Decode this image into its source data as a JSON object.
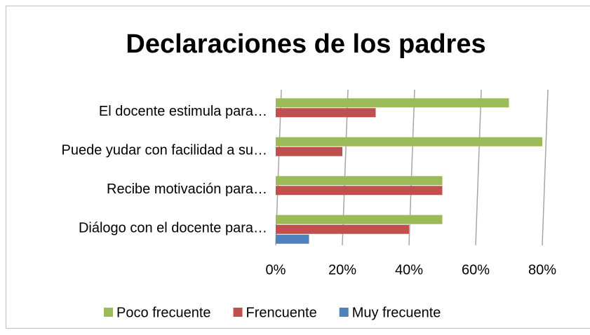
{
  "chart_data": {
    "type": "bar",
    "orientation": "horizontal",
    "title": "Declaraciones de los padres",
    "categories": [
      "El docente estimula para…",
      "Puede yudar con facilidad a su…",
      "Recibe motivación para…",
      "Diálogo con el docente para…"
    ],
    "series": [
      {
        "name": "Poco frecuente",
        "color": "#9bbb59",
        "values": [
          70,
          80,
          50,
          50
        ]
      },
      {
        "name": "Frencuente",
        "color": "#c0504d",
        "values": [
          30,
          20,
          50,
          40
        ]
      },
      {
        "name": "Muy frecuente",
        "color": "#4f81bd",
        "values": [
          0,
          0,
          0,
          10
        ]
      }
    ],
    "xlim": [
      0,
      80
    ],
    "xticks": [
      {
        "value": 0,
        "label": "0%"
      },
      {
        "value": 20,
        "label": "20%"
      },
      {
        "value": 40,
        "label": "40%"
      },
      {
        "value": 60,
        "label": "60%"
      },
      {
        "value": 80,
        "label": "80%"
      }
    ],
    "grid": true,
    "legend": "bottom"
  }
}
